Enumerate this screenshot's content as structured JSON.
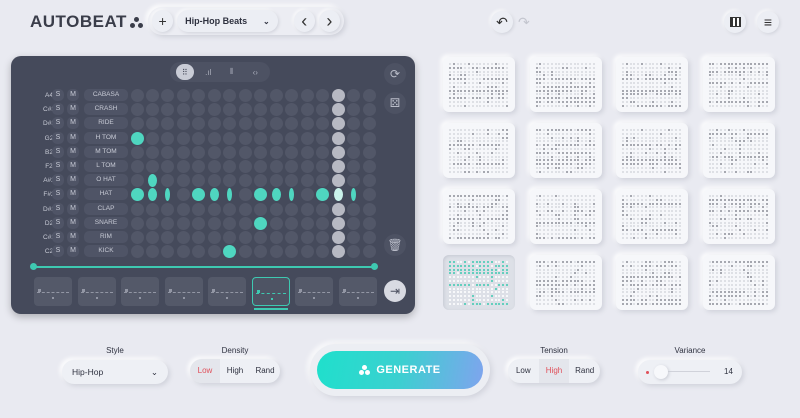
{
  "app": {
    "title": "AUTOBEAT"
  },
  "toolbar": {
    "preset": "Hip-Hop Beats",
    "add": "+",
    "prev": "‹",
    "next": "›",
    "undo": "↶",
    "redo": "↷"
  },
  "colors": {
    "accent": "#4fd6c0",
    "active_option": "#e0505a",
    "panel": "#454a5b"
  },
  "sequencer": {
    "steps": 16,
    "playhead_step": 13,
    "view_modes": [
      "grid",
      "velocity",
      "waveform",
      "code"
    ],
    "active_view": "grid",
    "rows": [
      {
        "note": "A4",
        "name": "CABASA",
        "hits": {}
      },
      {
        "note": "C#3",
        "name": "CRASH",
        "hits": {}
      },
      {
        "note": "D#3",
        "name": "RIDE",
        "hits": {}
      },
      {
        "note": "G2",
        "name": "H TOM",
        "hits": {
          "0": 1
        }
      },
      {
        "note": "B2",
        "name": "M TOM",
        "hits": {}
      },
      {
        "note": "F2",
        "name": "L TOM",
        "hits": {}
      },
      {
        "note": "A#2",
        "name": "O HAT",
        "hits": {
          "1": 0.7
        }
      },
      {
        "note": "F#2",
        "name": "HAT",
        "hits": {
          "0": 1,
          "1": 0.7,
          "2": 0.4,
          "4": 1,
          "5": 0.7,
          "6": 0.4,
          "8": 1,
          "9": 0.7,
          "10": 0.4,
          "12": 1,
          "13": 0.7,
          "14": 0.4
        }
      },
      {
        "note": "D#2",
        "name": "CLAP",
        "hits": {}
      },
      {
        "note": "D2",
        "name": "SNARE",
        "hits": {
          "8": 1
        }
      },
      {
        "note": "C#2",
        "name": "RIM",
        "hits": {}
      },
      {
        "note": "C2",
        "name": "KICK",
        "hits": {
          "6": 1
        }
      }
    ],
    "solo_label": "S",
    "mute_label": "M",
    "patterns_count": 8,
    "selected_pattern": 5
  },
  "library": {
    "count": 16,
    "selected": 12
  },
  "controls": {
    "style": {
      "label": "Style",
      "value": "Hip-Hop"
    },
    "density": {
      "label": "Density",
      "options": [
        "Low",
        "High",
        "Rand"
      ],
      "selected": "Low"
    },
    "generate": "GENERATE",
    "tension": {
      "label": "Tension",
      "options": [
        "Low",
        "High",
        "Rand"
      ],
      "selected": "High"
    },
    "variance": {
      "label": "Variance",
      "value": 14,
      "max": 100
    }
  }
}
